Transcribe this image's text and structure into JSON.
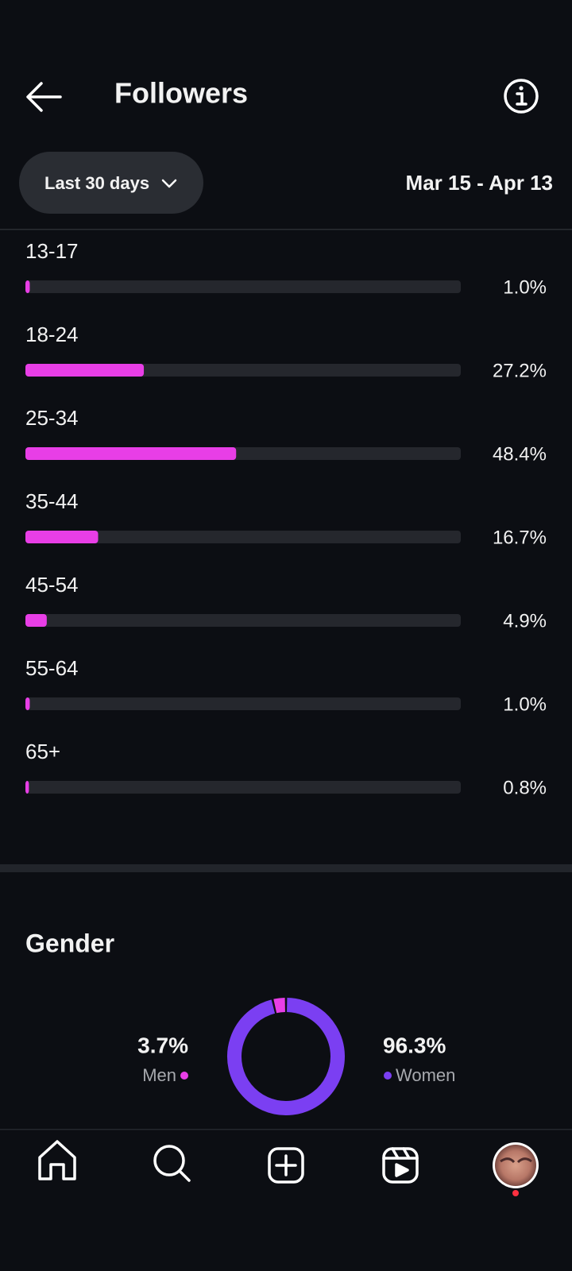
{
  "header": {
    "title": "Followers"
  },
  "filter": {
    "period": "Last 30 days",
    "date_range": "Mar 15 - Apr 13"
  },
  "age_chart": {
    "type": "bar",
    "categories": [
      "13-17",
      "18-24",
      "25-34",
      "35-44",
      "45-54",
      "55-64",
      "65+"
    ],
    "values": [
      1.0,
      27.2,
      48.4,
      16.7,
      4.9,
      1.0,
      0.8
    ],
    "value_labels": [
      "1.0%",
      "27.2%",
      "48.4%",
      "16.7%",
      "4.9%",
      "1.0%",
      "0.8%"
    ],
    "xlim": [
      0,
      100
    ],
    "color": "#e83ee6",
    "track_color": "#25272d"
  },
  "gender_chart": {
    "type": "pie",
    "title": "Gender",
    "categories": [
      "Men",
      "Women"
    ],
    "values": [
      3.7,
      96.3
    ],
    "value_labels": [
      "3.7%",
      "96.3%"
    ],
    "colors": [
      "#e83ee6",
      "#7b3ff2"
    ]
  }
}
